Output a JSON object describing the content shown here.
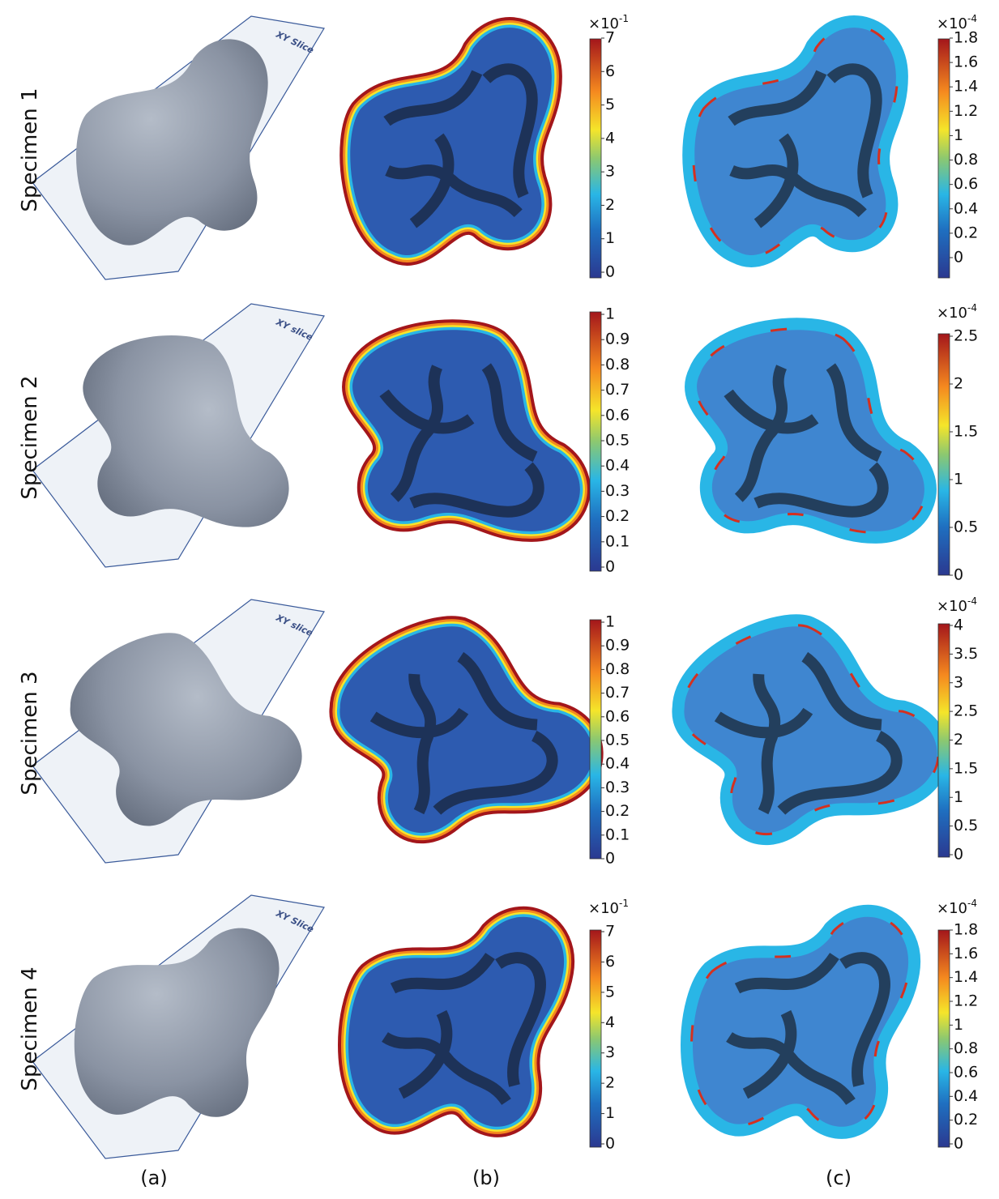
{
  "figure": {
    "rows": [
      {
        "label": "Specimen 1",
        "slice_label": "XY Slice",
        "colorbar_b": {
          "exponent": {
            "base": "×10",
            "power": "-1"
          },
          "ticks": [
            "0",
            "1",
            "2",
            "3",
            "4",
            "5",
            "6",
            "7"
          ]
        },
        "colorbar_c": {
          "exponent": {
            "base": "×10",
            "power": "-4"
          },
          "ticks": [
            "0",
            "0.2",
            "0.4",
            "0.6",
            "0.8",
            "1",
            "1.2",
            "1.4",
            "1.6",
            "1.8"
          ]
        }
      },
      {
        "label": "Specimen 2",
        "slice_label": "XY slice",
        "colorbar_b": {
          "ticks": [
            "0",
            "0.1",
            "0.2",
            "0.3",
            "0.4",
            "0.5",
            "0.6",
            "0.7",
            "0.8",
            "0.9",
            "1"
          ]
        },
        "colorbar_c": {
          "exponent": {
            "base": "×10",
            "power": "-4"
          },
          "ticks": [
            "0",
            "0.5",
            "1",
            "1.5",
            "2",
            "2.5"
          ]
        }
      },
      {
        "label": "Specimen 3",
        "slice_label": "XY slice",
        "colorbar_b": {
          "ticks": [
            "0",
            "0.1",
            "0.2",
            "0.3",
            "0.4",
            "0.5",
            "0.6",
            "0.7",
            "0.8",
            "0.9",
            "1"
          ]
        },
        "colorbar_c": {
          "exponent": {
            "base": "×10",
            "power": "-4"
          },
          "ticks": [
            "0",
            "0.5",
            "1",
            "1.5",
            "2",
            "2.5",
            "3",
            "3.5",
            "4"
          ]
        }
      },
      {
        "label": "Specimen 4",
        "slice_label": "XY Slice",
        "colorbar_b": {
          "exponent": {
            "base": "×10",
            "power": "-1"
          },
          "ticks": [
            "0",
            "1",
            "2",
            "3",
            "4",
            "5",
            "6",
            "7"
          ]
        },
        "colorbar_c": {
          "exponent": {
            "base": "×10",
            "power": "-4"
          },
          "ticks": [
            "0",
            "0.2",
            "0.4",
            "0.6",
            "0.8",
            "1",
            "1.2",
            "1.4",
            "1.6",
            "1.8"
          ]
        }
      }
    ],
    "columns": [
      "(a)",
      "(b)",
      "(c)"
    ]
  }
}
